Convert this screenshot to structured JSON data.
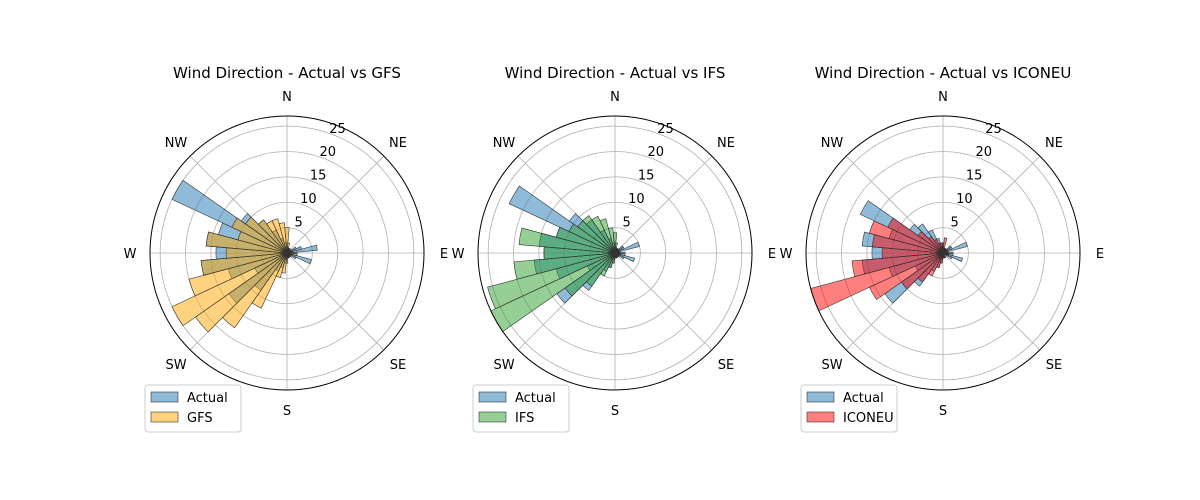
{
  "figure": {
    "direction_labels": [
      "N",
      "NE",
      "E",
      "SE",
      "S",
      "SW",
      "W",
      "NW"
    ],
    "radial_ticks": [
      5,
      10,
      15,
      20,
      25
    ]
  },
  "chart_data": [
    {
      "type": "polar-bar",
      "title": "Wind Direction - Actual vs GFS",
      "rmax": 27,
      "legend_placement": "bottom-left",
      "bin_width_deg": 10,
      "series": [
        {
          "name": "Actual",
          "color": "#1f77b4",
          "directions_deg": [
            30,
            40,
            60,
            70,
            80,
            90,
            100,
            110,
            120,
            140,
            150,
            160,
            170,
            180,
            190,
            200,
            210,
            220,
            230,
            240,
            250,
            260,
            270,
            280,
            290,
            300,
            310,
            320,
            330,
            340,
            350,
            0,
            10,
            20
          ],
          "values": [
            1,
            1,
            2,
            3,
            6,
            2,
            2,
            5,
            2,
            1,
            1,
            1,
            1,
            1,
            2,
            3,
            4,
            9,
            14,
            7,
            12,
            17,
            14,
            16,
            14,
            25,
            11,
            8,
            5,
            3,
            2,
            2,
            1,
            1
          ]
        },
        {
          "name": "GFS",
          "color": "#ffa500",
          "directions_deg": [
            10,
            20,
            30,
            40,
            60,
            80,
            90,
            100,
            110,
            120,
            150,
            160,
            170,
            180,
            190,
            200,
            210,
            220,
            230,
            240,
            250,
            260,
            270,
            280,
            290,
            300,
            310,
            320,
            330,
            340,
            350,
            0
          ],
          "values": [
            2,
            1,
            1,
            1,
            1,
            1,
            1,
            2,
            1,
            1,
            1,
            1,
            1,
            2,
            4,
            5,
            12,
            18,
            22,
            25,
            20,
            17,
            12,
            16,
            10,
            12,
            10,
            8,
            7,
            7,
            6,
            5
          ]
        }
      ]
    },
    {
      "type": "polar-bar",
      "title": "Wind Direction - Actual vs IFS",
      "rmax": 27,
      "legend_placement": "bottom-left",
      "bin_width_deg": 10,
      "series": [
        {
          "name": "Actual",
          "color": "#1f77b4",
          "directions_deg": [
            20,
            30,
            50,
            60,
            70,
            80,
            90,
            100,
            110,
            120,
            130,
            150,
            160,
            170,
            180,
            190,
            200,
            210,
            220,
            230,
            240,
            250,
            260,
            270,
            280,
            290,
            300,
            310,
            320,
            330,
            340,
            350,
            0,
            10
          ],
          "values": [
            1,
            1,
            2,
            2,
            5,
            1,
            2,
            2,
            4,
            2,
            1,
            1,
            1,
            1,
            1,
            2,
            3,
            4,
            9,
            14,
            6,
            12,
            16,
            14,
            15,
            12,
            23,
            11,
            8,
            5,
            3,
            2,
            2,
            1
          ]
        },
        {
          "name": "IFS",
          "color": "#2ca02c",
          "directions_deg": [
            10,
            20,
            30,
            40,
            60,
            80,
            90,
            100,
            110,
            120,
            150,
            160,
            170,
            180,
            190,
            200,
            210,
            220,
            230,
            240,
            250,
            260,
            270,
            280,
            290,
            300,
            310,
            320,
            330,
            340,
            350,
            0
          ],
          "values": [
            2,
            1,
            1,
            1,
            1,
            1,
            1,
            1,
            1,
            1,
            1,
            1,
            1,
            1,
            2,
            3,
            5,
            8,
            12,
            27,
            26,
            20,
            14,
            19,
            12,
            10,
            9,
            9,
            8,
            7,
            5,
            4
          ]
        }
      ]
    },
    {
      "type": "polar-bar",
      "title": "Wind Direction - Actual vs ICONEU",
      "rmax": 27,
      "legend_placement": "bottom-left",
      "bin_width_deg": 10,
      "series": [
        {
          "name": "Actual",
          "color": "#1f77b4",
          "directions_deg": [
            20,
            30,
            50,
            60,
            70,
            80,
            90,
            100,
            110,
            120,
            150,
            170,
            180,
            190,
            200,
            210,
            220,
            230,
            240,
            250,
            260,
            270,
            280,
            290,
            300,
            310,
            320,
            330,
            340,
            350,
            0,
            10
          ],
          "values": [
            1,
            1,
            2,
            2,
            5,
            1,
            2,
            2,
            4,
            2,
            1,
            1,
            1,
            2,
            3,
            4,
            8,
            14,
            6,
            11,
            16,
            14,
            16,
            11,
            18,
            8,
            7,
            5,
            3,
            2,
            2,
            1
          ]
        },
        {
          "name": "ICONEU",
          "color": "#ff0000",
          "directions_deg": [
            10,
            20,
            30,
            40,
            60,
            80,
            90,
            100,
            110,
            120,
            150,
            160,
            170,
            180,
            190,
            200,
            210,
            220,
            230,
            240,
            250,
            260,
            270,
            280,
            290,
            300,
            310,
            320,
            330,
            340,
            350,
            0
          ],
          "values": [
            3,
            1,
            1,
            1,
            1,
            1,
            1,
            1,
            1,
            1,
            1,
            1,
            1,
            1,
            2,
            3,
            5,
            7,
            10,
            16,
            27,
            18,
            12,
            14,
            15,
            12,
            6,
            4,
            3,
            2,
            2,
            2
          ]
        }
      ]
    }
  ]
}
